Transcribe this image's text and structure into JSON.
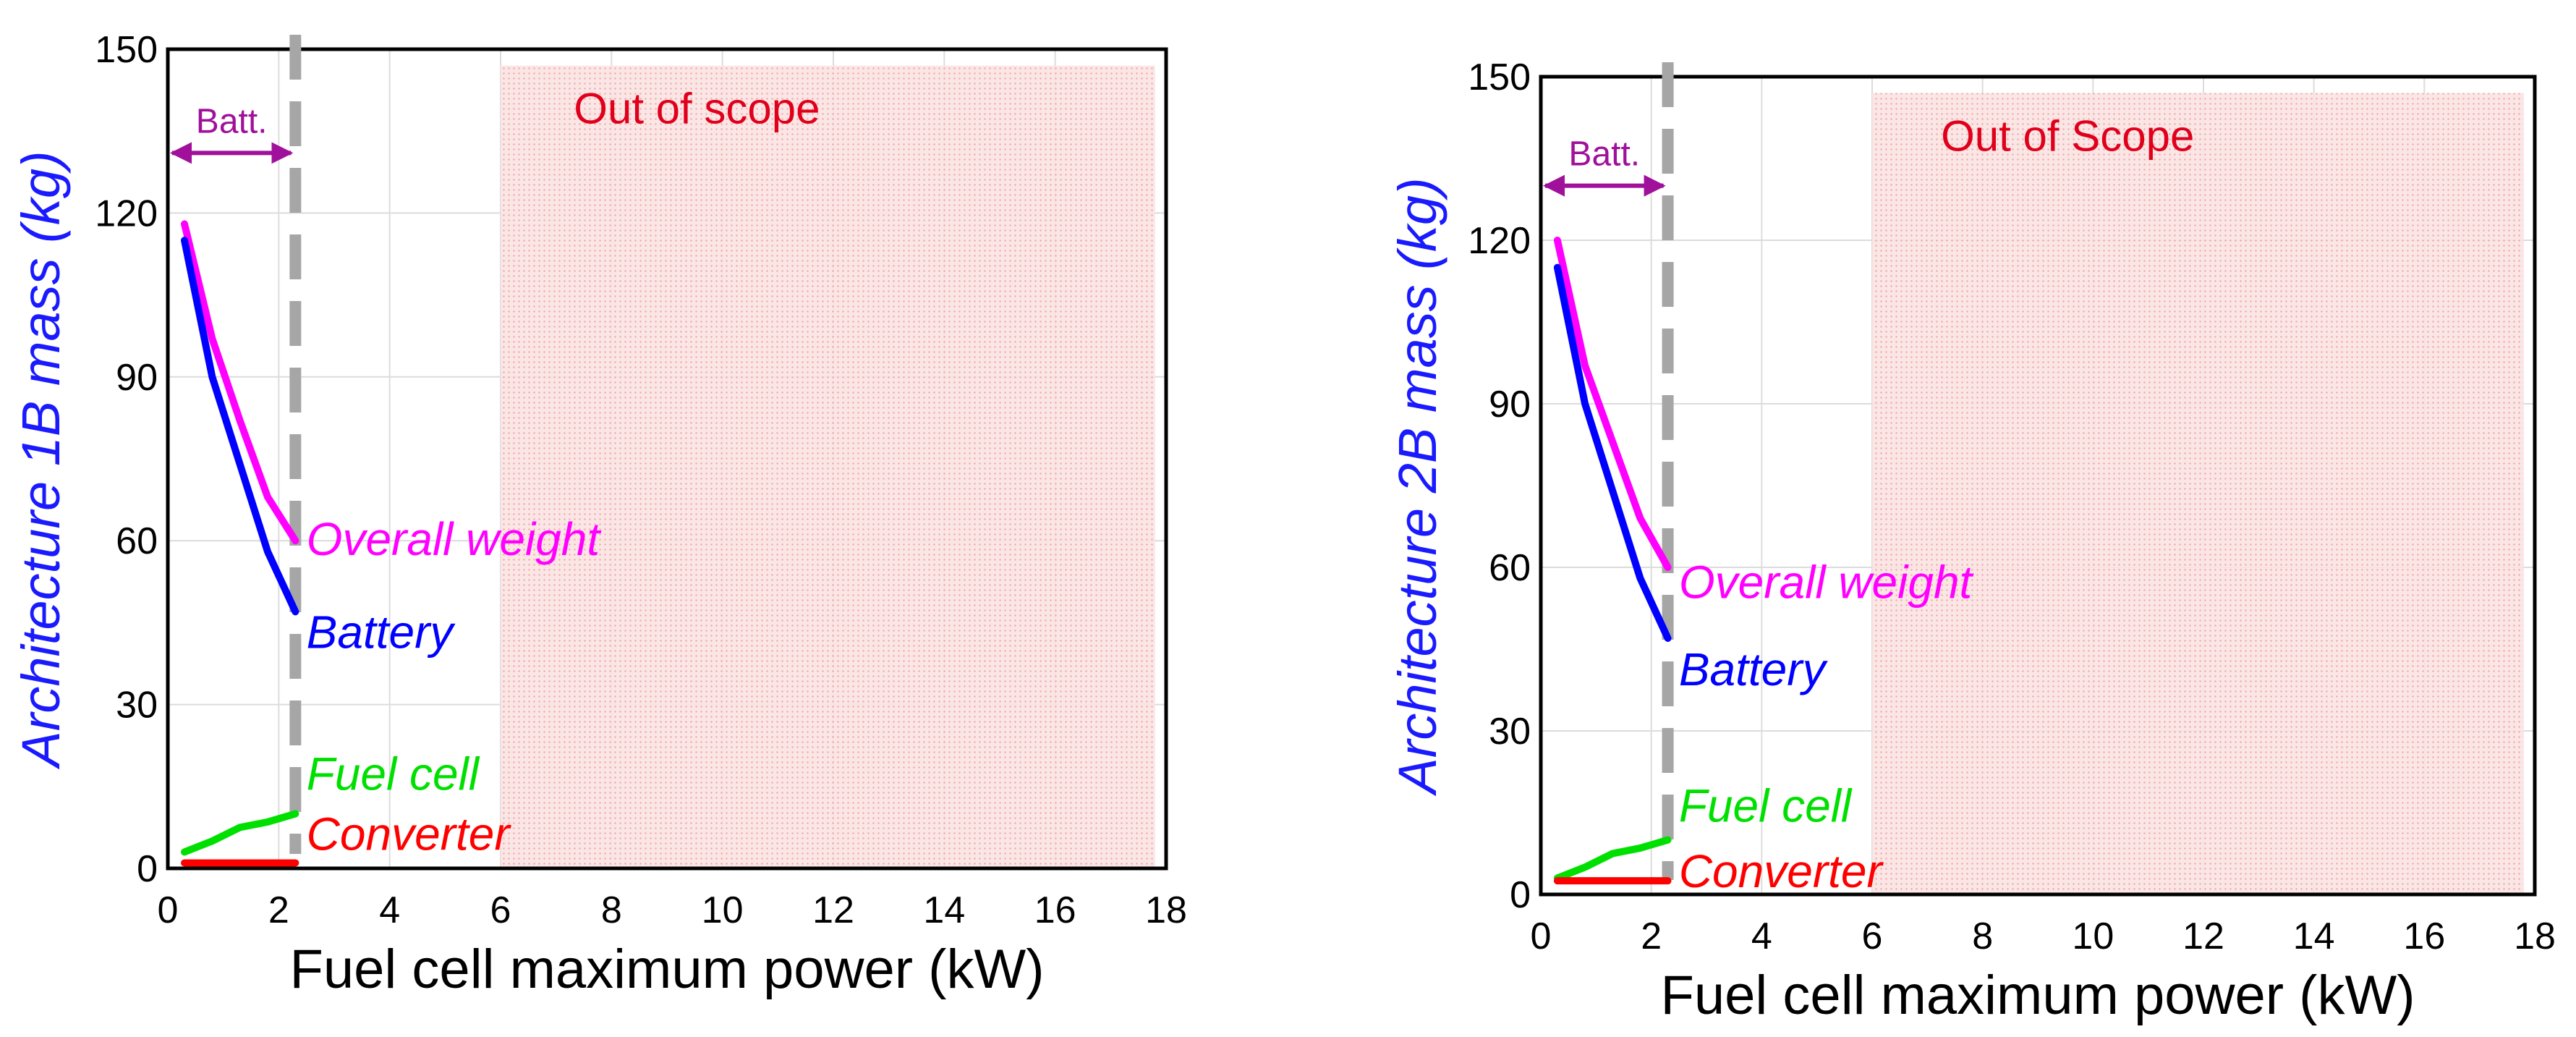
{
  "chart_data": [
    {
      "id": "chart1b",
      "type": "line",
      "xlabel": "Fuel cell maximum power (kW)",
      "ylabel": "Architecture 1B mass (kg)",
      "xlim": [
        0,
        18
      ],
      "ylim": [
        0,
        150
      ],
      "xticks": [
        0,
        2,
        4,
        6,
        8,
        10,
        12,
        14,
        16,
        18
      ],
      "yticks": [
        0,
        30,
        60,
        90,
        120,
        150
      ],
      "grid": true,
      "out_of_scope": {
        "label": "Out of scope",
        "x_from": 6,
        "x_to": 17.8,
        "y_to": 147
      },
      "battery_limit": {
        "label": "Batt.",
        "x": 2.3,
        "x_from": 0,
        "x_to": 2.3,
        "y": 131
      },
      "series": [
        {
          "name": "Overall weight",
          "color": "#ff00ff",
          "x": [
            0.3,
            0.8,
            1.3,
            1.8,
            2.3
          ],
          "y": [
            118,
            97,
            82,
            68,
            60
          ],
          "label_pos": [
            2.5,
            60
          ]
        },
        {
          "name": "Battery",
          "color": "#0000ff",
          "x": [
            0.3,
            0.8,
            1.3,
            1.8,
            2.3
          ],
          "y": [
            115,
            90,
            74,
            58,
            47
          ],
          "label_pos": [
            2.5,
            43
          ]
        },
        {
          "name": "Fuel cell",
          "color": "#00e000",
          "x": [
            0.3,
            0.8,
            1.3,
            1.8,
            2.3
          ],
          "y": [
            3,
            5,
            7.5,
            8.5,
            10
          ],
          "label_pos": [
            2.5,
            17
          ]
        },
        {
          "name": "Converter",
          "color": "#ff0000",
          "x": [
            0.3,
            0.8,
            1.3,
            1.8,
            2.3
          ],
          "y": [
            1,
            1,
            1,
            1,
            1
          ],
          "label_pos": [
            2.5,
            6
          ]
        }
      ]
    },
    {
      "id": "chart2b",
      "type": "line",
      "xlabel": "Fuel cell maximum power (kW)",
      "ylabel": "Architecture 2B mass (kg)",
      "xlim": [
        0,
        18
      ],
      "ylim": [
        0,
        150
      ],
      "xticks": [
        0,
        2,
        4,
        6,
        8,
        10,
        12,
        14,
        16,
        18
      ],
      "yticks": [
        0,
        30,
        60,
        90,
        120,
        150
      ],
      "grid": true,
      "out_of_scope": {
        "label": "Out of Scope",
        "x_from": 6,
        "x_to": 17.8,
        "y_to": 147
      },
      "battery_limit": {
        "label": "Batt.",
        "x": 2.3,
        "x_from": 0,
        "x_to": 2.3,
        "y": 130
      },
      "series": [
        {
          "name": "Overall weight",
          "color": "#ff00ff",
          "x": [
            0.3,
            0.8,
            1.3,
            1.8,
            2.3
          ],
          "y": [
            120,
            97,
            83,
            69,
            60
          ],
          "label_pos": [
            2.5,
            57
          ]
        },
        {
          "name": "Battery",
          "color": "#0000ff",
          "x": [
            0.3,
            0.8,
            1.3,
            1.8,
            2.3
          ],
          "y": [
            115,
            90,
            74,
            58,
            47
          ],
          "label_pos": [
            2.5,
            41
          ]
        },
        {
          "name": "Fuel cell",
          "color": "#00e000",
          "x": [
            0.3,
            0.8,
            1.3,
            1.8,
            2.3
          ],
          "y": [
            3,
            5,
            7.5,
            8.5,
            10
          ],
          "label_pos": [
            2.5,
            16
          ]
        },
        {
          "name": "Converter",
          "color": "#ff0000",
          "x": [
            0.3,
            0.8,
            1.3,
            1.8,
            2.3
          ],
          "y": [
            2.5,
            2.5,
            2.5,
            2.5,
            2.5
          ],
          "label_pos": [
            2.5,
            4
          ]
        }
      ]
    }
  ]
}
